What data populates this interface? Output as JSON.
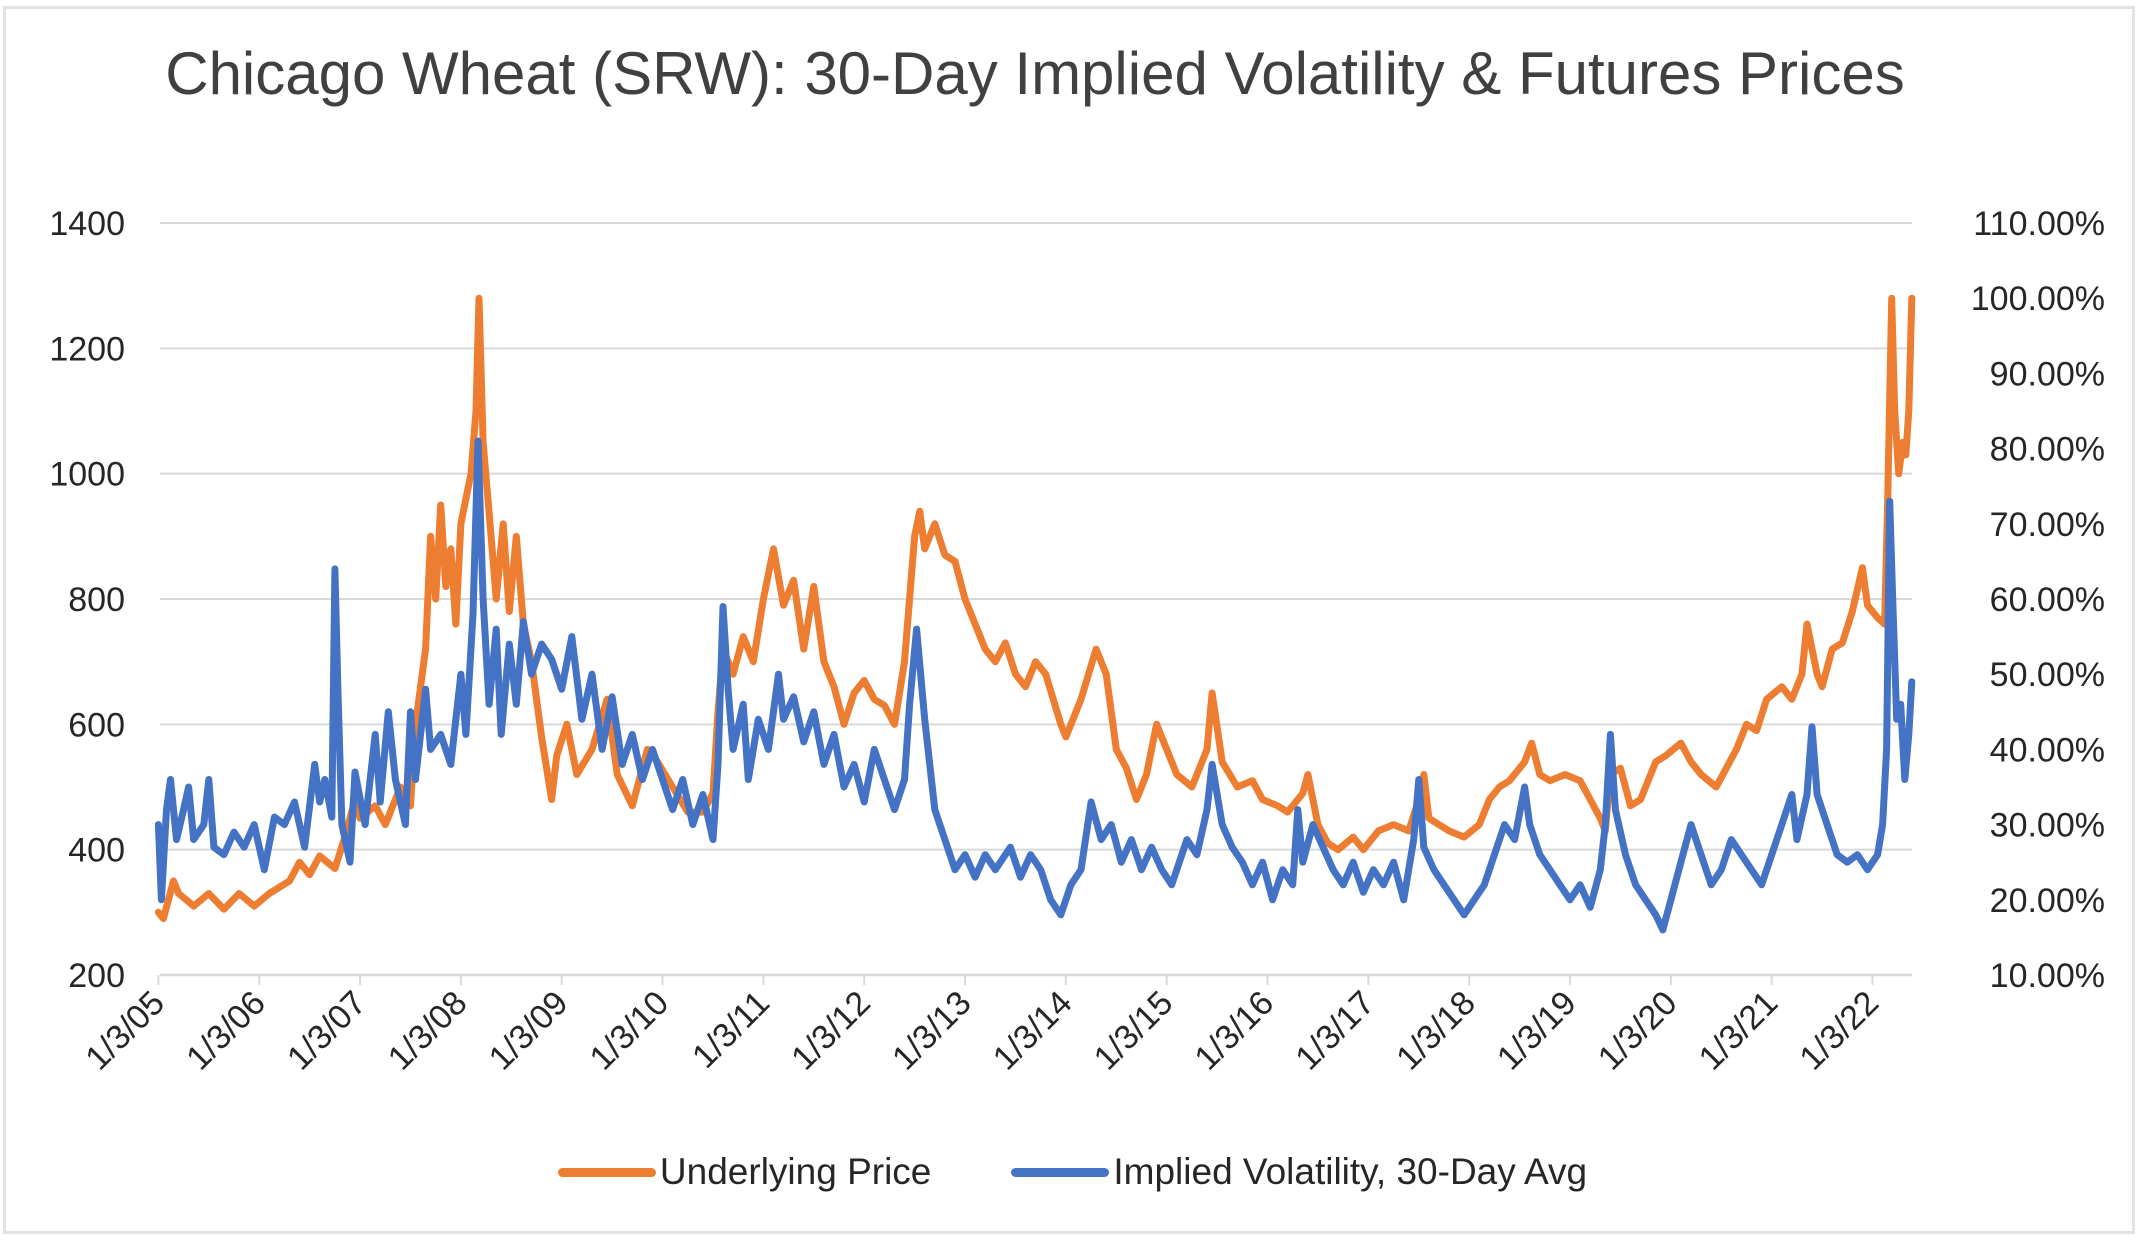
{
  "chart_data": {
    "type": "line",
    "title": "Chicago Wheat (SRW): 30-Day Implied Volatility & Futures Prices",
    "xlabel": "",
    "ylabel_left": "",
    "ylabel_right": "",
    "x_axis": {
      "type": "date",
      "range_decimal_year": [
        2005.0,
        2022.39
      ],
      "tick_labels": [
        "1/3/05",
        "1/3/06",
        "1/3/07",
        "1/3/08",
        "1/3/09",
        "1/3/10",
        "1/3/11",
        "1/3/12",
        "1/3/13",
        "1/3/14",
        "1/3/15",
        "1/3/16",
        "1/3/17",
        "1/3/18",
        "1/3/19",
        "1/3/20",
        "1/3/21",
        "1/3/22"
      ],
      "tick_values_decimal_year": [
        2005,
        2006,
        2007,
        2008,
        2009,
        2010,
        2011,
        2012,
        2013,
        2014,
        2015,
        2016,
        2017,
        2018,
        2019,
        2020,
        2021,
        2022
      ]
    },
    "y_axis_left": {
      "range": [
        200,
        1400
      ],
      "ticks": [
        200,
        400,
        600,
        800,
        1000,
        1200,
        1400
      ],
      "tick_labels": [
        "200",
        "400",
        "600",
        "800",
        "1000",
        "1200",
        "1400"
      ]
    },
    "y_axis_right": {
      "range": [
        10,
        110
      ],
      "unit": "%",
      "ticks": [
        10,
        20,
        30,
        40,
        50,
        60,
        70,
        80,
        90,
        100,
        110
      ],
      "tick_labels": [
        "10.00%",
        "20.00%",
        "30.00%",
        "40.00%",
        "50.00%",
        "60.00%",
        "70.00%",
        "80.00%",
        "90.00%",
        "100.00%",
        "110.00%"
      ]
    },
    "grid": true,
    "legend_position": "bottom",
    "series": [
      {
        "name": "Underlying Price",
        "axis": "left",
        "color": "#ED7D31",
        "x": [
          2005.0,
          2005.05,
          2005.15,
          2005.2,
          2005.35,
          2005.5,
          2005.65,
          2005.8,
          2005.95,
          2006.1,
          2006.3,
          2006.4,
          2006.5,
          2006.6,
          2006.75,
          2006.85,
          2006.95,
          2007.0,
          2007.15,
          2007.25,
          2007.4,
          2007.5,
          2007.55,
          2007.65,
          2007.7,
          2007.75,
          2007.8,
          2007.85,
          2007.9,
          2007.95,
          2008.0,
          2008.05,
          2008.1,
          2008.15,
          2008.18,
          2008.22,
          2008.3,
          2008.35,
          2008.42,
          2008.48,
          2008.55,
          2008.62,
          2008.7,
          2008.8,
          2008.9,
          2008.95,
          2009.05,
          2009.15,
          2009.3,
          2009.45,
          2009.55,
          2009.7,
          2009.85,
          2009.95,
          2010.1,
          2010.25,
          2010.4,
          2010.5,
          2010.55,
          2010.6,
          2010.7,
          2010.8,
          2010.9,
          2011.0,
          2011.1,
          2011.2,
          2011.3,
          2011.4,
          2011.5,
          2011.6,
          2011.7,
          2011.8,
          2011.9,
          2012.0,
          2012.1,
          2012.2,
          2012.3,
          2012.4,
          2012.5,
          2012.55,
          2012.6,
          2012.7,
          2012.8,
          2012.9,
          2013.0,
          2013.1,
          2013.2,
          2013.3,
          2013.4,
          2013.5,
          2013.6,
          2013.7,
          2013.8,
          2013.95,
          2014.0,
          2014.15,
          2014.3,
          2014.4,
          2014.5,
          2014.6,
          2014.7,
          2014.8,
          2014.9,
          2015.0,
          2015.1,
          2015.25,
          2015.4,
          2015.45,
          2015.55,
          2015.7,
          2015.85,
          2015.95,
          2016.1,
          2016.2,
          2016.35,
          2016.4,
          2016.5,
          2016.6,
          2016.7,
          2016.85,
          2016.95,
          2017.1,
          2017.25,
          2017.4,
          2017.5,
          2017.55,
          2017.6,
          2017.7,
          2017.8,
          2017.95,
          2018.1,
          2018.2,
          2018.3,
          2018.4,
          2018.55,
          2018.62,
          2018.7,
          2018.8,
          2018.95,
          2019.1,
          2019.2,
          2019.3,
          2019.35,
          2019.4,
          2019.5,
          2019.6,
          2019.7,
          2019.85,
          2019.95,
          2020.1,
          2020.2,
          2020.3,
          2020.45,
          2020.55,
          2020.65,
          2020.75,
          2020.85,
          2020.95,
          2021.1,
          2021.2,
          2021.3,
          2021.35,
          2021.45,
          2021.5,
          2021.6,
          2021.7,
          2021.8,
          2021.9,
          2021.95,
          2022.05,
          2022.12,
          2022.15,
          2022.19,
          2022.22,
          2022.26,
          2022.3,
          2022.33,
          2022.36,
          2022.39
        ],
        "values": [
          300,
          290,
          350,
          330,
          310,
          330,
          305,
          330,
          310,
          330,
          350,
          380,
          360,
          390,
          370,
          420,
          480,
          450,
          470,
          440,
          500,
          470,
          600,
          720,
          900,
          800,
          950,
          820,
          880,
          760,
          920,
          960,
          1000,
          1100,
          1280,
          1050,
          900,
          800,
          920,
          780,
          900,
          760,
          700,
          580,
          480,
          550,
          600,
          520,
          560,
          640,
          520,
          470,
          560,
          540,
          500,
          460,
          460,
          490,
          620,
          720,
          680,
          740,
          700,
          800,
          880,
          790,
          830,
          720,
          820,
          700,
          660,
          600,
          650,
          670,
          640,
          630,
          600,
          700,
          900,
          940,
          880,
          920,
          870,
          860,
          800,
          760,
          720,
          700,
          730,
          680,
          660,
          700,
          680,
          600,
          580,
          640,
          720,
          680,
          560,
          530,
          480,
          520,
          600,
          560,
          520,
          500,
          560,
          650,
          540,
          500,
          510,
          480,
          470,
          460,
          490,
          520,
          440,
          410,
          400,
          420,
          400,
          430,
          440,
          430,
          480,
          520,
          450,
          440,
          430,
          420,
          440,
          480,
          500,
          510,
          540,
          570,
          520,
          510,
          520,
          510,
          480,
          450,
          430,
          520,
          530,
          470,
          480,
          540,
          550,
          570,
          540,
          520,
          500,
          530,
          560,
          600,
          590,
          640,
          660,
          640,
          680,
          760,
          680,
          660,
          720,
          730,
          780,
          850,
          790,
          770,
          760,
          950,
          1280,
          1100,
          1000,
          1050,
          1030,
          1100,
          1280
        ]
      },
      {
        "name": "Implied Volatility, 30-Day Avg",
        "axis": "right",
        "color": "#4472C4",
        "x": [
          2005.0,
          2005.03,
          2005.08,
          2005.12,
          2005.18,
          2005.25,
          2005.3,
          2005.35,
          2005.45,
          2005.5,
          2005.55,
          2005.65,
          2005.75,
          2005.85,
          2005.95,
          2006.05,
          2006.15,
          2006.25,
          2006.35,
          2006.45,
          2006.55,
          2006.6,
          2006.65,
          2006.72,
          2006.75,
          2006.78,
          2006.82,
          2006.9,
          2006.95,
          2007.05,
          2007.15,
          2007.2,
          2007.28,
          2007.35,
          2007.45,
          2007.5,
          2007.55,
          2007.65,
          2007.7,
          2007.8,
          2007.9,
          2008.0,
          2008.05,
          2008.12,
          2008.17,
          2008.22,
          2008.28,
          2008.35,
          2008.4,
          2008.48,
          2008.55,
          2008.62,
          2008.7,
          2008.8,
          2008.9,
          2009.0,
          2009.1,
          2009.2,
          2009.3,
          2009.4,
          2009.5,
          2009.6,
          2009.7,
          2009.8,
          2009.9,
          2010.0,
          2010.1,
          2010.2,
          2010.3,
          2010.4,
          2010.5,
          2010.55,
          2010.6,
          2010.65,
          2010.7,
          2010.8,
          2010.85,
          2010.95,
          2011.05,
          2011.15,
          2011.2,
          2011.3,
          2011.4,
          2011.5,
          2011.6,
          2011.7,
          2011.8,
          2011.9,
          2012.0,
          2012.1,
          2012.2,
          2012.3,
          2012.4,
          2012.45,
          2012.52,
          2012.6,
          2012.7,
          2012.8,
          2012.9,
          2013.0,
          2013.1,
          2013.2,
          2013.3,
          2013.45,
          2013.55,
          2013.65,
          2013.75,
          2013.85,
          2013.95,
          2014.05,
          2014.15,
          2014.25,
          2014.35,
          2014.45,
          2014.55,
          2014.65,
          2014.75,
          2014.85,
          2014.95,
          2015.05,
          2015.2,
          2015.3,
          2015.4,
          2015.45,
          2015.55,
          2015.65,
          2015.75,
          2015.85,
          2015.95,
          2016.05,
          2016.15,
          2016.25,
          2016.3,
          2016.35,
          2016.45,
          2016.55,
          2016.65,
          2016.75,
          2016.85,
          2016.95,
          2017.05,
          2017.15,
          2017.25,
          2017.35,
          2017.45,
          2017.5,
          2017.55,
          2017.65,
          2017.75,
          2017.85,
          2017.95,
          2018.05,
          2018.15,
          2018.25,
          2018.35,
          2018.45,
          2018.55,
          2018.6,
          2018.7,
          2018.8,
          2018.9,
          2019.0,
          2019.1,
          2019.2,
          2019.3,
          2019.35,
          2019.4,
          2019.45,
          2019.55,
          2019.65,
          2019.75,
          2019.85,
          2019.92,
          2020.0,
          2020.1,
          2020.2,
          2020.3,
          2020.4,
          2020.5,
          2020.6,
          2020.7,
          2020.8,
          2020.9,
          2021.0,
          2021.1,
          2021.2,
          2021.25,
          2021.35,
          2021.4,
          2021.45,
          2021.55,
          2021.65,
          2021.75,
          2021.85,
          2021.95,
          2022.05,
          2022.1,
          2022.14,
          2022.17,
          2022.2,
          2022.24,
          2022.28,
          2022.32,
          2022.36,
          2022.39
        ],
        "values": [
          30,
          20,
          32,
          36,
          28,
          32,
          35,
          28,
          30,
          36,
          27,
          26,
          29,
          27,
          30,
          24,
          31,
          30,
          33,
          27,
          38,
          33,
          36,
          31,
          64,
          48,
          30,
          25,
          37,
          30,
          42,
          33,
          45,
          36,
          30,
          45,
          36,
          48,
          40,
          42,
          38,
          50,
          42,
          58,
          81,
          60,
          46,
          56,
          42,
          54,
          46,
          57,
          50,
          54,
          52,
          48,
          55,
          44,
          50,
          40,
          47,
          38,
          42,
          36,
          40,
          36,
          32,
          36,
          30,
          34,
          28,
          38,
          59,
          48,
          40,
          46,
          36,
          44,
          40,
          50,
          44,
          47,
          41,
          45,
          38,
          42,
          35,
          38,
          33,
          40,
          36,
          32,
          36,
          46,
          56,
          44,
          32,
          28,
          24,
          26,
          23,
          26,
          24,
          27,
          23,
          26,
          24,
          20,
          18,
          22,
          24,
          33,
          28,
          30,
          25,
          28,
          24,
          27,
          24,
          22,
          28,
          26,
          32,
          38,
          30,
          27,
          25,
          22,
          25,
          20,
          24,
          22,
          32,
          25,
          30,
          27,
          24,
          22,
          25,
          21,
          24,
          22,
          25,
          20,
          28,
          36,
          27,
          24,
          22,
          20,
          18,
          20,
          22,
          26,
          30,
          28,
          35,
          30,
          26,
          24,
          22,
          20,
          22,
          19,
          24,
          30,
          42,
          32,
          26,
          22,
          20,
          18,
          16,
          20,
          25,
          30,
          26,
          22,
          24,
          28,
          26,
          24,
          22,
          26,
          30,
          34,
          28,
          34,
          43,
          34,
          30,
          26,
          25,
          26,
          24,
          26,
          30,
          40,
          73,
          60,
          44,
          46,
          36,
          42,
          49
        ]
      }
    ]
  }
}
